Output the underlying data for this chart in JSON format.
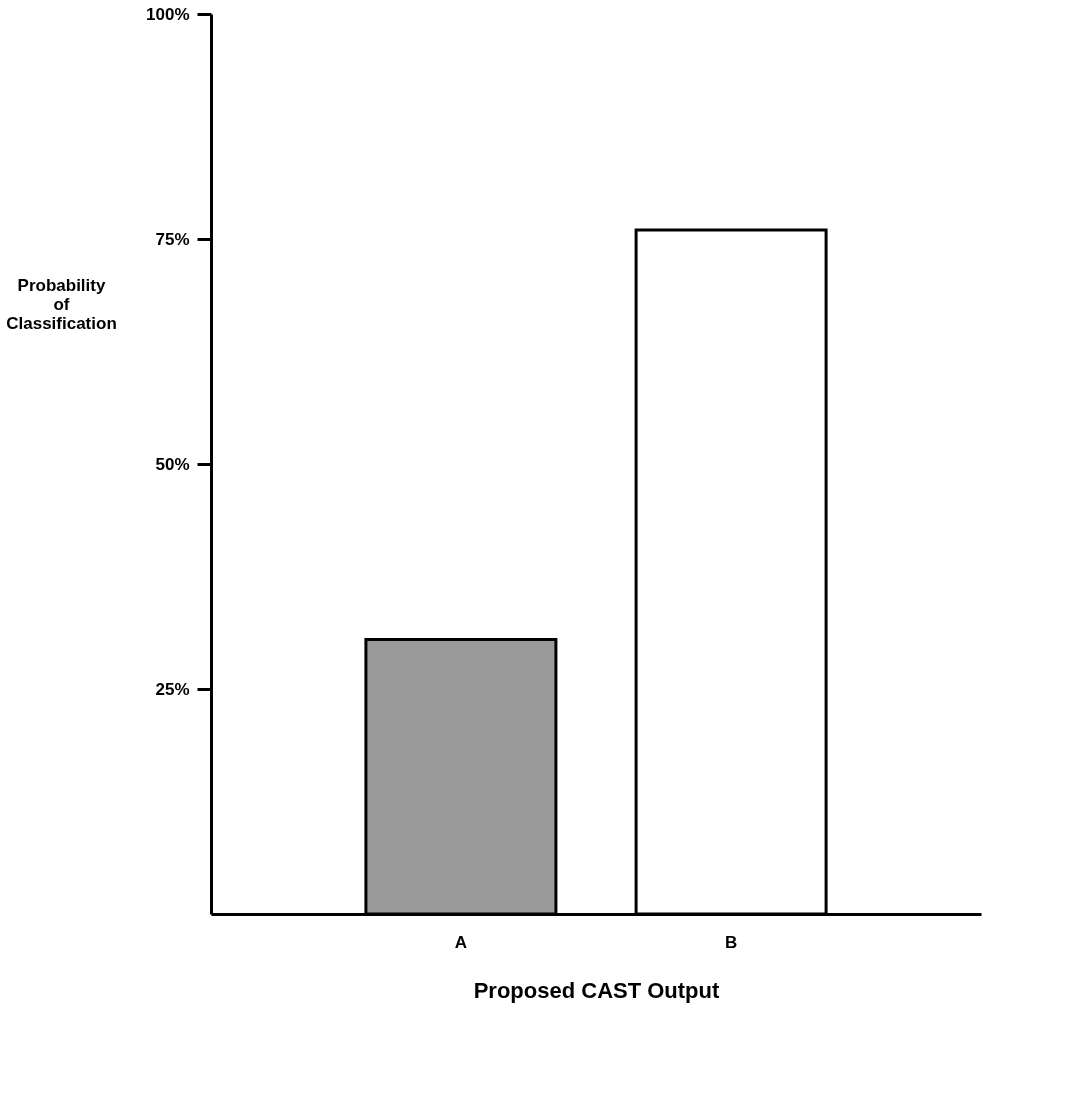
{
  "chart_data": {
    "type": "bar",
    "xlabel": "Proposed CAST Output",
    "ylabel": "Probability of Classification",
    "categories": [
      "A",
      "B"
    ],
    "values": [
      30.5,
      76
    ],
    "colors": [
      "#9a9a9a",
      "#ffffff"
    ],
    "ylim": [
      0,
      100
    ],
    "yticks": [
      {
        "value": 25,
        "label": "25%"
      },
      {
        "value": 50,
        "label": "50%"
      },
      {
        "value": 75,
        "label": "75%"
      },
      {
        "value": 100,
        "label": "100%"
      }
    ],
    "grid": false
  }
}
